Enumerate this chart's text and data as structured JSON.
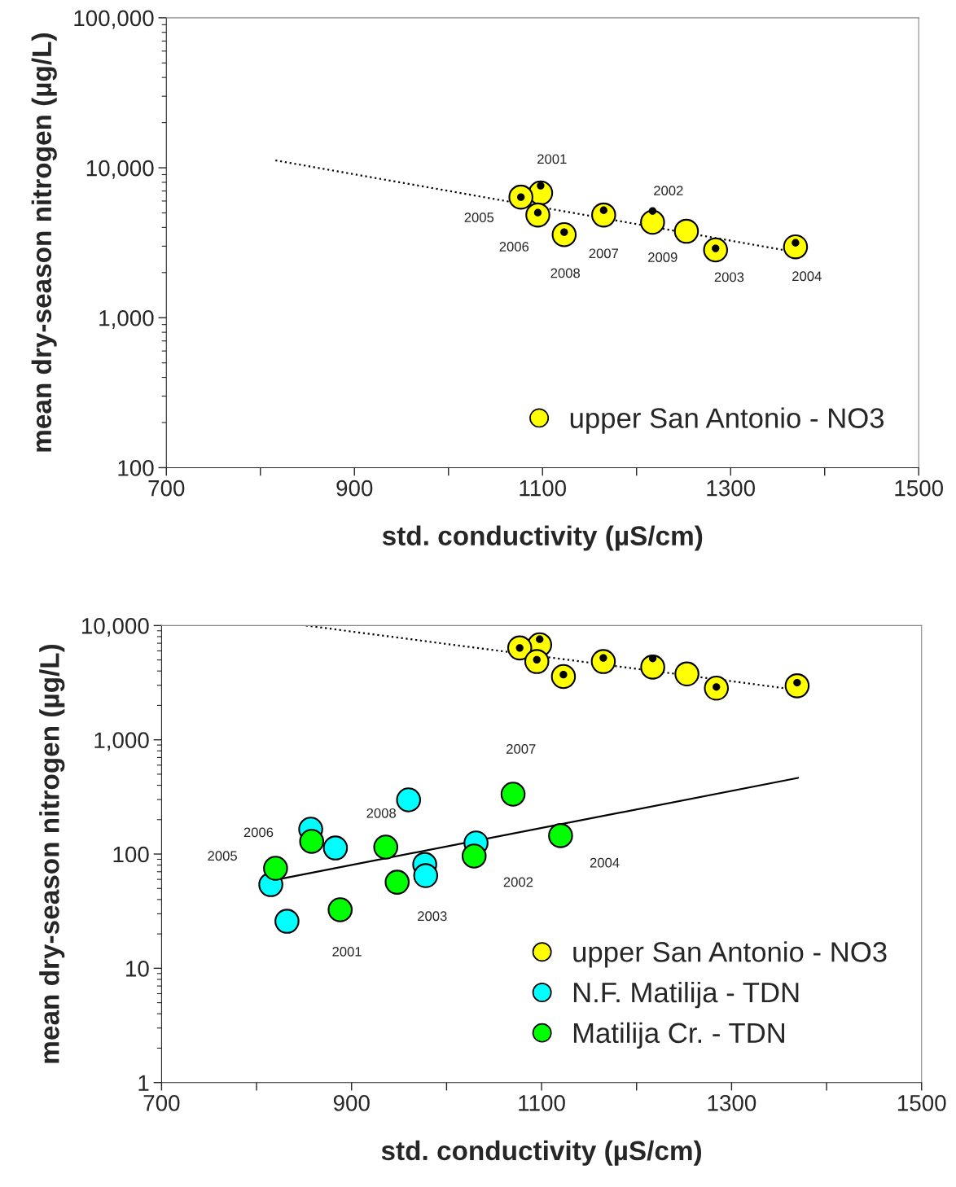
{
  "chart_data": [
    {
      "type": "scatter",
      "xlabel": "std. conductivity (µS/cm)",
      "ylabel": "mean dry-season nitrogen (µg/L)",
      "log": "y",
      "grid": false,
      "legend": "bottom right",
      "marker": "circle",
      "xlim": [
        700,
        1500
      ],
      "xticks": [
        700,
        {
          "value": 800,
          "label": null
        },
        900,
        {
          "value": 1000,
          "label": null
        },
        1100,
        {
          "value": 1200,
          "label": null
        },
        1300,
        {
          "value": 1400,
          "label": null
        },
        1500
      ],
      "ylim": [
        100,
        100000
      ],
      "yticks": [
        100,
        {
          "value": 1000,
          "label": "1,000"
        },
        {
          "value": 10000,
          "label": "10,000"
        },
        {
          "value": 100000,
          "label": "100,000"
        }
      ],
      "series": [
        {
          "type": "line",
          "color": "#000000",
          "line_style": "dotted",
          "marker": "none",
          "x": [
            816,
            1376
          ],
          "values": [
            11200,
            2690
          ]
        },
        {
          "name": "upper San Antonio - NO3",
          "color": "#ffff00",
          "x": [
            1098,
            1217,
            1284,
            1369,
            1077,
            1095,
            1165,
            1123,
            1253
          ],
          "values": [
            6790,
            4330,
            2830,
            2970,
            6370,
            4840,
            4840,
            3580,
            3770
          ]
        },
        {
          "color": "#000000",
          "x": [
            1098,
            1217,
            1284,
            1369,
            1077,
            1095,
            1165,
            1123
          ],
          "values": [
            7590,
            5150,
            2900,
            3160,
            6370,
            5020,
            5210,
            3720
          ]
        }
      ],
      "annotations": [
        {
          "text": "2001",
          "x": 1098,
          "y": 6790
        },
        {
          "text": "2002",
          "x": 1217,
          "y": 4330
        },
        {
          "text": "2003",
          "x": 1284,
          "y": 2830
        },
        {
          "text": "2004",
          "x": 1369,
          "y": 2970
        },
        {
          "text": "2005",
          "x": 1077,
          "y": 6370
        },
        {
          "text": "2006",
          "x": 1095,
          "y": 4840
        },
        {
          "text": "2007",
          "x": 1165,
          "y": 4840
        },
        {
          "text": "2008",
          "x": 1123,
          "y": 3580
        },
        {
          "text": "2009",
          "x": 1253,
          "y": 3770
        }
      ]
    },
    {
      "type": "scatter",
      "xlabel": "std. conductivity (µS/cm)",
      "ylabel": "mean dry-season nitrogen (µg/L)",
      "log": "y",
      "grid": false,
      "legend": "bottom right",
      "marker": "circle",
      "xlim": [
        700,
        1500
      ],
      "xticks": [
        700,
        {
          "value": 800,
          "label": null
        },
        900,
        {
          "value": 1000,
          "label": null
        },
        1100,
        {
          "value": 1200,
          "label": null
        },
        1300,
        {
          "value": 1400,
          "label": null
        },
        1500
      ],
      "ylim": [
        1,
        10000
      ],
      "yticks": [
        1,
        10,
        100,
        {
          "value": 1000,
          "label": "1,000"
        },
        {
          "value": 10000,
          "label": "10,000"
        }
      ],
      "series": [
        {
          "type": "line",
          "color": "#000000",
          "line_style": "dotted",
          "marker": "none",
          "x": [
            852,
            1376
          ],
          "values": [
            10000,
            2690
          ]
        },
        {
          "type": "line",
          "color": "#000000",
          "line_style": "solid",
          "marker": "none",
          "x": [
            816,
            1370
          ],
          "values": [
            58.6,
            464
          ]
        },
        {
          "name": "upper San Antonio - NO3",
          "color": "#ffff00",
          "x": [
            1098,
            1217,
            1284,
            1369,
            1077,
            1095,
            1165,
            1123,
            1253
          ],
          "values": [
            6790,
            4330,
            2830,
            2970,
            6370,
            4840,
            4840,
            3580,
            3770
          ]
        },
        {
          "color": "#000000",
          "x": [
            1098,
            1217,
            1284,
            1369,
            1077,
            1095,
            1165,
            1123
          ],
          "values": [
            7590,
            5150,
            2900,
            3160,
            6370,
            5020,
            5210,
            3720
          ]
        },
        {
          "name": "N.F. Matilija - TDN",
          "color": "#00ffff",
          "x": [
            815,
            832,
            857,
            883,
            960,
            977,
            978,
            1031
          ],
          "values": [
            54,
            25.8,
            165,
            113,
            298,
            81,
            64.7,
            125
          ]
        },
        {
          "name": "Matilija Cr. - TDN",
          "color": "#00ff00",
          "x": [
            888,
            1029,
            948,
            1120,
            820,
            858,
            1070,
            936
          ],
          "values": [
            32.5,
            96,
            56.7,
            145,
            75,
            129,
            334,
            115
          ]
        }
      ],
      "annotations": [
        {
          "text": "2001",
          "x": 888,
          "y": 32.5
        },
        {
          "text": "2002",
          "x": 1029,
          "y": 96
        },
        {
          "text": "2003",
          "x": 948,
          "y": 56.7
        },
        {
          "text": "2004",
          "x": 1120,
          "y": 145
        },
        {
          "text": "2005",
          "x": 820,
          "y": 75
        },
        {
          "text": "2006",
          "x": 858,
          "y": 129
        },
        {
          "text": "2007",
          "x": 1070,
          "y": 334
        },
        {
          "text": "2008",
          "x": 936,
          "y": 115
        }
      ]
    }
  ]
}
